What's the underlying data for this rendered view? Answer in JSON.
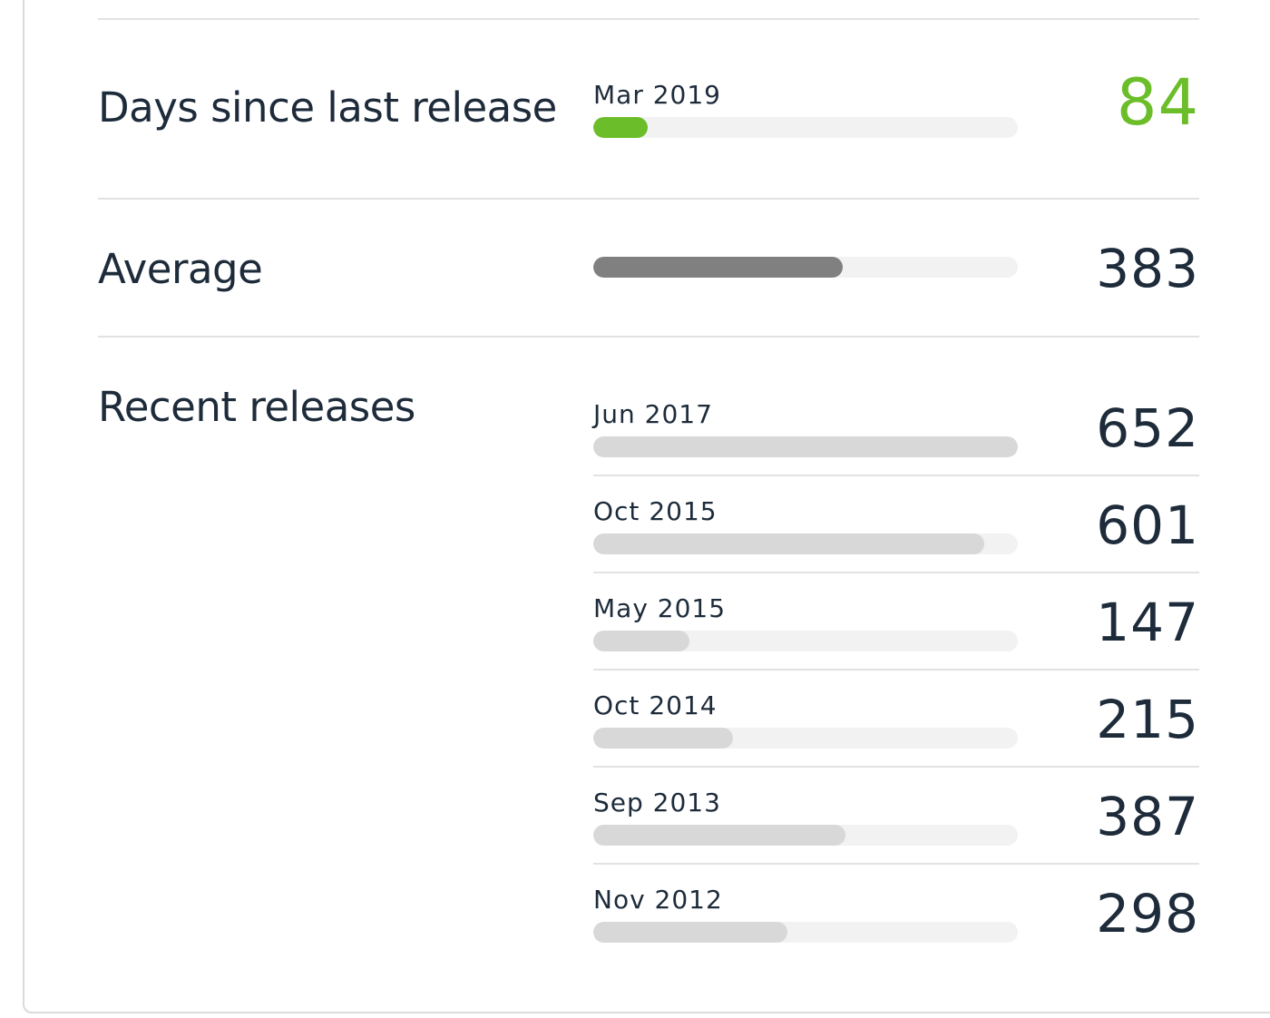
{
  "colors": {
    "accent_green": "#6cbd2a",
    "average_bar": "#808080",
    "recent_bar": "#d8d8d8",
    "track": "#f2f2f2",
    "text": "#1d2b3a"
  },
  "scale_max_days": 652,
  "last_release": {
    "title": "Days since last release",
    "date": "Mar 2019",
    "value": "84",
    "days": 84
  },
  "average": {
    "title": "Average",
    "value": "383",
    "days": 383
  },
  "recent": {
    "title": "Recent releases",
    "items": [
      {
        "date": "Jun 2017",
        "value": "652",
        "days": 652
      },
      {
        "date": "Oct 2015",
        "value": "601",
        "days": 601
      },
      {
        "date": "May 2015",
        "value": "147",
        "days": 147
      },
      {
        "date": "Oct 2014",
        "value": "215",
        "days": 215
      },
      {
        "date": "Sep 2013",
        "value": "387",
        "days": 387
      },
      {
        "date": "Nov 2012",
        "value": "298",
        "days": 298
      }
    ]
  }
}
